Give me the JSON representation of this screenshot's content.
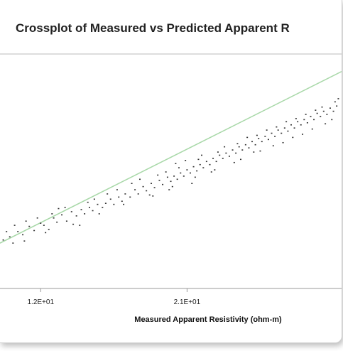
{
  "chart_data": {
    "type": "scatter",
    "title": "Crossplot of Measured vs Predicted Apparent R",
    "xlabel": "Measured Apparent Resistivity (ohm-m)",
    "ylabel": "",
    "x_ticks": [
      {
        "value": 12,
        "label": "1.2E+01"
      },
      {
        "value": 21,
        "label": "2.1E+01"
      }
    ],
    "xlim": [
      9.5,
      30.5
    ],
    "ylim": [
      8.0,
      30.0
    ],
    "grid": false,
    "trend_line": {
      "x": [
        9.5,
        30.5
      ],
      "y": [
        12.2,
        28.6
      ],
      "color": "#a8d8a8"
    },
    "point_color": "#333333",
    "points": [
      [
        9.7,
        12.5
      ],
      [
        10.1,
        12.8
      ],
      [
        10.6,
        13.3
      ],
      [
        10.9,
        13.0
      ],
      [
        11.3,
        13.8
      ],
      [
        11.6,
        13.4
      ],
      [
        12.0,
        14.1
      ],
      [
        12.2,
        13.9
      ],
      [
        12.8,
        14.6
      ],
      [
        13.0,
        14.2
      ],
      [
        13.3,
        14.9
      ],
      [
        13.6,
        14.3
      ],
      [
        13.9,
        15.2
      ],
      [
        14.2,
        14.8
      ],
      [
        14.5,
        15.4
      ],
      [
        14.7,
        15.0
      ],
      [
        15.0,
        15.6
      ],
      [
        15.2,
        15.3
      ],
      [
        15.5,
        15.9
      ],
      [
        15.8,
        15.6
      ],
      [
        16.0,
        16.0
      ],
      [
        16.3,
        16.4
      ],
      [
        16.5,
        15.9
      ],
      [
        16.8,
        16.6
      ],
      [
        17.0,
        16.2
      ],
      [
        17.2,
        16.9
      ],
      [
        17.5,
        16.6
      ],
      [
        17.8,
        17.3
      ],
      [
        18.0,
        16.9
      ],
      [
        18.3,
        17.6
      ],
      [
        18.5,
        17.2
      ],
      [
        18.8,
        17.9
      ],
      [
        19.0,
        17.5
      ],
      [
        19.3,
        18.2
      ],
      [
        19.5,
        17.8
      ],
      [
        19.8,
        18.5
      ],
      [
        20.0,
        18.1
      ],
      [
        20.2,
        18.6
      ],
      [
        20.4,
        18.3
      ],
      [
        20.6,
        18.9
      ],
      [
        20.8,
        18.6
      ],
      [
        21.0,
        19.2
      ],
      [
        21.2,
        18.9
      ],
      [
        21.4,
        19.5
      ],
      [
        21.6,
        19.1
      ],
      [
        21.8,
        19.7
      ],
      [
        22.0,
        19.4
      ],
      [
        22.2,
        20.0
      ],
      [
        22.4,
        19.7
      ],
      [
        22.6,
        20.3
      ],
      [
        22.8,
        20.0
      ],
      [
        23.0,
        20.6
      ],
      [
        23.2,
        20.3
      ],
      [
        23.4,
        20.8
      ],
      [
        23.6,
        20.5
      ],
      [
        23.8,
        21.1
      ],
      [
        24.0,
        20.8
      ],
      [
        24.2,
        21.4
      ],
      [
        24.4,
        21.1
      ],
      [
        24.6,
        21.6
      ],
      [
        24.8,
        21.3
      ],
      [
        25.0,
        21.9
      ],
      [
        25.2,
        21.6
      ],
      [
        25.4,
        22.2
      ],
      [
        25.6,
        21.9
      ],
      [
        25.8,
        22.4
      ],
      [
        26.0,
        22.1
      ],
      [
        26.2,
        22.7
      ],
      [
        26.4,
        22.4
      ],
      [
        26.6,
        23.0
      ],
      [
        26.8,
        22.7
      ],
      [
        27.0,
        23.2
      ],
      [
        27.2,
        22.9
      ],
      [
        27.4,
        23.5
      ],
      [
        27.6,
        23.2
      ],
      [
        27.8,
        23.8
      ],
      [
        28.0,
        23.5
      ],
      [
        28.2,
        24.0
      ],
      [
        28.4,
        23.7
      ],
      [
        28.6,
        24.3
      ],
      [
        28.8,
        24.0
      ],
      [
        29.0,
        24.6
      ],
      [
        29.2,
        24.3
      ],
      [
        29.4,
        24.8
      ],
      [
        29.6,
        24.5
      ],
      [
        29.8,
        25.1
      ],
      [
        30.0,
        24.8
      ],
      [
        30.2,
        25.3
      ],
      [
        10.4,
        13.9
      ],
      [
        11.8,
        14.6
      ],
      [
        13.1,
        15.5
      ],
      [
        14.9,
        16.1
      ],
      [
        16.1,
        16.9
      ],
      [
        17.6,
        17.9
      ],
      [
        19.2,
        18.7
      ],
      [
        20.5,
        19.4
      ],
      [
        21.7,
        20.2
      ],
      [
        22.9,
        20.9
      ],
      [
        24.1,
        21.7
      ],
      [
        25.3,
        22.5
      ],
      [
        26.5,
        23.3
      ],
      [
        27.7,
        24.1
      ],
      [
        28.9,
        24.9
      ],
      [
        30.1,
        25.7
      ],
      [
        11.0,
        12.4
      ],
      [
        12.5,
        13.5
      ],
      [
        14.0,
        14.0
      ],
      [
        15.6,
        15.0
      ],
      [
        17.1,
        15.9
      ],
      [
        18.7,
        16.8
      ],
      [
        20.1,
        17.6
      ],
      [
        21.5,
        18.5
      ],
      [
        22.7,
        19.2
      ],
      [
        24.3,
        20.2
      ],
      [
        25.5,
        21.0
      ],
      [
        26.9,
        21.8
      ],
      [
        28.1,
        22.6
      ],
      [
        29.5,
        23.6
      ],
      [
        20.3,
        19.8
      ],
      [
        20.9,
        20.1
      ],
      [
        21.3,
        17.9
      ],
      [
        21.9,
        20.6
      ],
      [
        22.5,
        19.0
      ],
      [
        23.3,
        21.4
      ],
      [
        23.9,
        19.9
      ],
      [
        24.7,
        22.3
      ],
      [
        25.1,
        20.9
      ],
      [
        25.9,
        23.0
      ],
      [
        26.3,
        21.5
      ],
      [
        27.1,
        23.8
      ],
      [
        27.5,
        22.3
      ],
      [
        28.3,
        24.5
      ],
      [
        28.7,
        23.1
      ],
      [
        29.3,
        25.2
      ],
      [
        29.9,
        24.0
      ],
      [
        30.3,
        26.0
      ],
      [
        18.1,
        18.3
      ],
      [
        18.9,
        16.7
      ],
      [
        19.7,
        19.0
      ],
      [
        19.9,
        17.3
      ],
      [
        16.7,
        17.3
      ],
      [
        15.3,
        16.4
      ],
      [
        14.4,
        13.9
      ],
      [
        13.5,
        15.6
      ],
      [
        12.7,
        15.0
      ],
      [
        12.3,
        13.2
      ],
      [
        11.1,
        14.3
      ],
      [
        10.3,
        12.2
      ],
      [
        9.9,
        13.3
      ]
    ]
  }
}
